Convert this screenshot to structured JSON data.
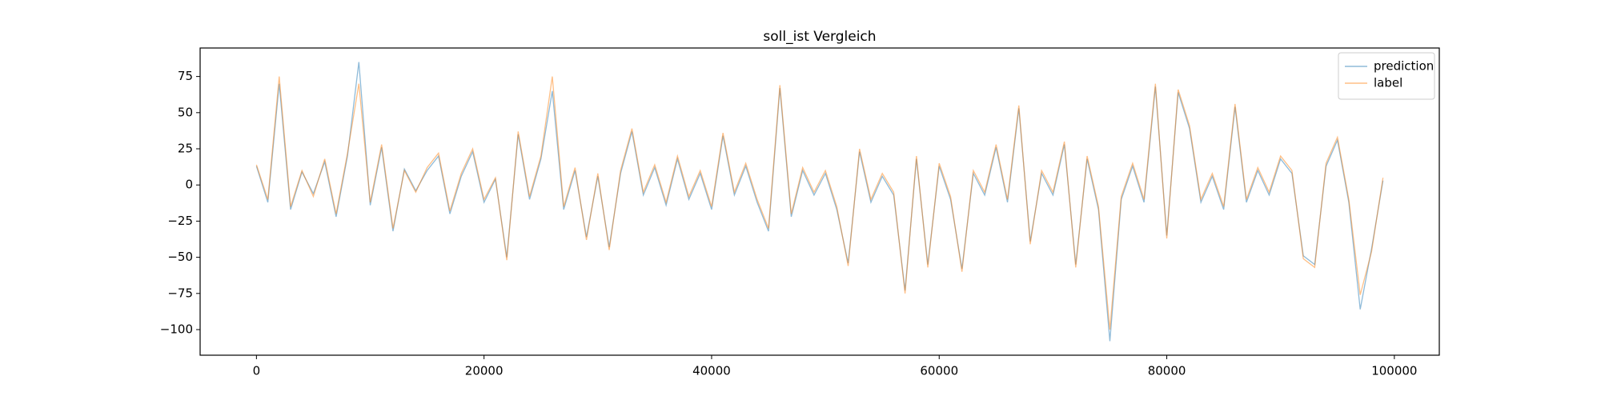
{
  "chart_data": {
    "type": "line",
    "title": "soll_ist Vergleich",
    "title_color": "#ff0000",
    "x": [
      0,
      1000,
      2000,
      3000,
      4000,
      5000,
      6000,
      7000,
      8000,
      9000,
      10000,
      11000,
      12000,
      13000,
      14000,
      15000,
      16000,
      17000,
      18000,
      19000,
      20000,
      21000,
      22000,
      23000,
      24000,
      25000,
      26000,
      27000,
      28000,
      29000,
      30000,
      31000,
      32000,
      33000,
      34000,
      35000,
      36000,
      37000,
      38000,
      39000,
      40000,
      41000,
      42000,
      43000,
      44000,
      45000,
      46000,
      47000,
      48000,
      49000,
      50000,
      51000,
      52000,
      53000,
      54000,
      55000,
      56000,
      57000,
      58000,
      59000,
      60000,
      61000,
      62000,
      63000,
      64000,
      65000,
      66000,
      67000,
      68000,
      69000,
      70000,
      71000,
      72000,
      73000,
      74000,
      75000,
      76000,
      77000,
      78000,
      79000,
      80000,
      81000,
      82000,
      83000,
      84000,
      85000,
      86000,
      87000,
      88000,
      89000,
      90000,
      91000,
      92000,
      93000,
      94000,
      95000,
      96000,
      97000,
      98000,
      99000
    ],
    "series": [
      {
        "name": "prediction",
        "color": "#1f77b4",
        "values": [
          13,
          -12,
          70,
          -17,
          9,
          -6,
          16,
          -22,
          20,
          85,
          -14,
          26,
          -32,
          11,
          -4,
          10,
          20,
          -20,
          6,
          23,
          -12,
          4,
          -50,
          35,
          -10,
          18,
          65,
          -17,
          10,
          -36,
          6,
          -43,
          8,
          37,
          -7,
          12,
          -14,
          18,
          -10,
          8,
          -17,
          34,
          -7,
          13,
          -12,
          -32,
          67,
          -22,
          10,
          -7,
          8,
          -17,
          -54,
          23,
          -12,
          6,
          -7,
          -73,
          18,
          -55,
          13,
          -10,
          -58,
          8,
          -7,
          26,
          -12,
          53,
          -39,
          8,
          -7,
          28,
          -55,
          18,
          -17,
          -108,
          -10,
          13,
          -12,
          68,
          -35,
          64,
          39,
          -12,
          6,
          -17,
          54,
          -12,
          10,
          -7,
          18,
          8,
          -49,
          -55,
          13,
          31,
          -12,
          -86,
          -44,
          3
        ]
      },
      {
        "name": "label",
        "color": "#ff7f0e",
        "values": [
          14,
          -10,
          75,
          -15,
          10,
          -8,
          18,
          -20,
          22,
          70,
          -12,
          28,
          -30,
          10,
          -5,
          12,
          22,
          -18,
          8,
          25,
          -10,
          5,
          -52,
          37,
          -8,
          20,
          75,
          -15,
          12,
          -38,
          8,
          -45,
          10,
          39,
          -5,
          14,
          -12,
          20,
          -8,
          10,
          -15,
          36,
          -5,
          15,
          -10,
          -30,
          69,
          -20,
          12,
          -5,
          10,
          -15,
          -56,
          25,
          -10,
          8,
          -5,
          -75,
          20,
          -57,
          15,
          -8,
          -60,
          10,
          -5,
          28,
          -10,
          55,
          -41,
          10,
          -5,
          30,
          -57,
          20,
          -15,
          -100,
          -8,
          15,
          -10,
          70,
          -37,
          66,
          41,
          -10,
          8,
          -15,
          56,
          -10,
          12,
          -5,
          20,
          10,
          -51,
          -57,
          15,
          33,
          -10,
          -76,
          -46,
          5
        ]
      }
    ],
    "xlim": [
      -4950,
      103950
    ],
    "ylim": [
      -117.7,
      94.7
    ],
    "xticks": [
      0,
      20000,
      40000,
      60000,
      80000,
      100000
    ],
    "yticks": [
      {
        "value": -100,
        "label": "−100"
      },
      {
        "value": -75,
        "label": "−75"
      },
      {
        "value": -50,
        "label": "−50"
      },
      {
        "value": -25,
        "label": "−25"
      },
      0,
      25,
      50,
      75
    ],
    "legend": "upper right"
  }
}
